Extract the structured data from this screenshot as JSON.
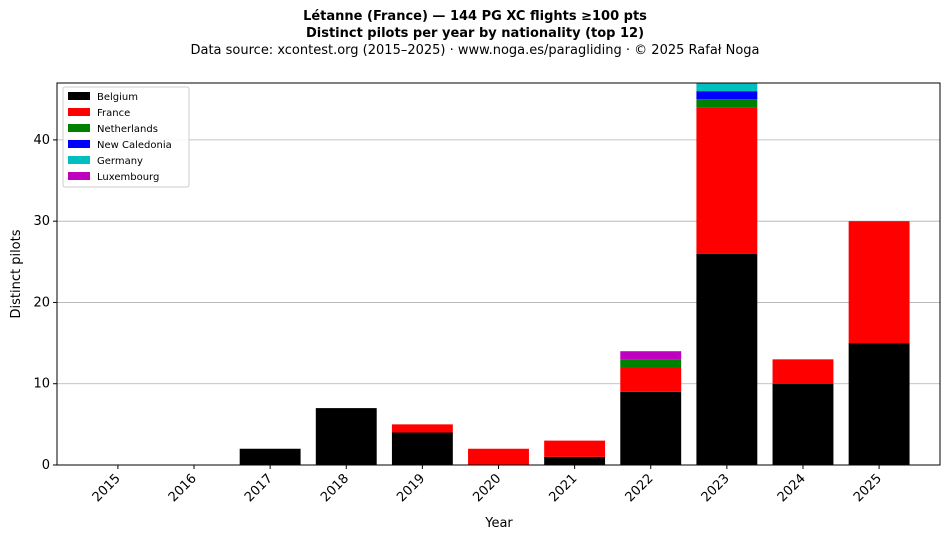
{
  "chart_data": {
    "type": "bar",
    "stacked": true,
    "title": "Létanne (France)  —  144 PG XC flights ≥100 pts",
    "subtitle": "Distinct pilots per year by nationality (top 12)",
    "caption": "Data source: xcontest.org (2015–2025)  ·  www.noga.es/paragliding  ·  © 2025 Rafał Noga",
    "xlabel": "Year",
    "ylabel": "Distinct pilots",
    "categories": [
      "2015",
      "2016",
      "2017",
      "2018",
      "2019",
      "2020",
      "2021",
      "2022",
      "2023",
      "2024",
      "2025"
    ],
    "ylim": [
      0,
      47
    ],
    "yticks": [
      0,
      10,
      20,
      30,
      40
    ],
    "grid": "y",
    "legend_position": "top-left",
    "series": [
      {
        "name": "Belgium",
        "color": "#000000",
        "values": [
          0,
          0,
          2,
          7,
          4,
          0,
          1,
          9,
          26,
          10,
          15
        ]
      },
      {
        "name": "France",
        "color": "#ff0000",
        "values": [
          0,
          0,
          0,
          0,
          1,
          2,
          2,
          3,
          18,
          3,
          15
        ]
      },
      {
        "name": "Netherlands",
        "color": "#008000",
        "values": [
          0,
          0,
          0,
          0,
          0,
          0,
          0,
          1,
          1,
          0,
          0
        ]
      },
      {
        "name": "New Caledonia",
        "color": "#0000ff",
        "values": [
          0,
          0,
          0,
          0,
          0,
          0,
          0,
          0,
          1,
          0,
          0
        ]
      },
      {
        "name": "Germany",
        "color": "#00bfbf",
        "values": [
          0,
          0,
          0,
          0,
          0,
          0,
          0,
          0,
          1,
          0,
          0
        ]
      },
      {
        "name": "Luxembourg",
        "color": "#bf00bf",
        "values": [
          0,
          0,
          0,
          0,
          0,
          0,
          0,
          1,
          0,
          0,
          0
        ]
      }
    ]
  }
}
